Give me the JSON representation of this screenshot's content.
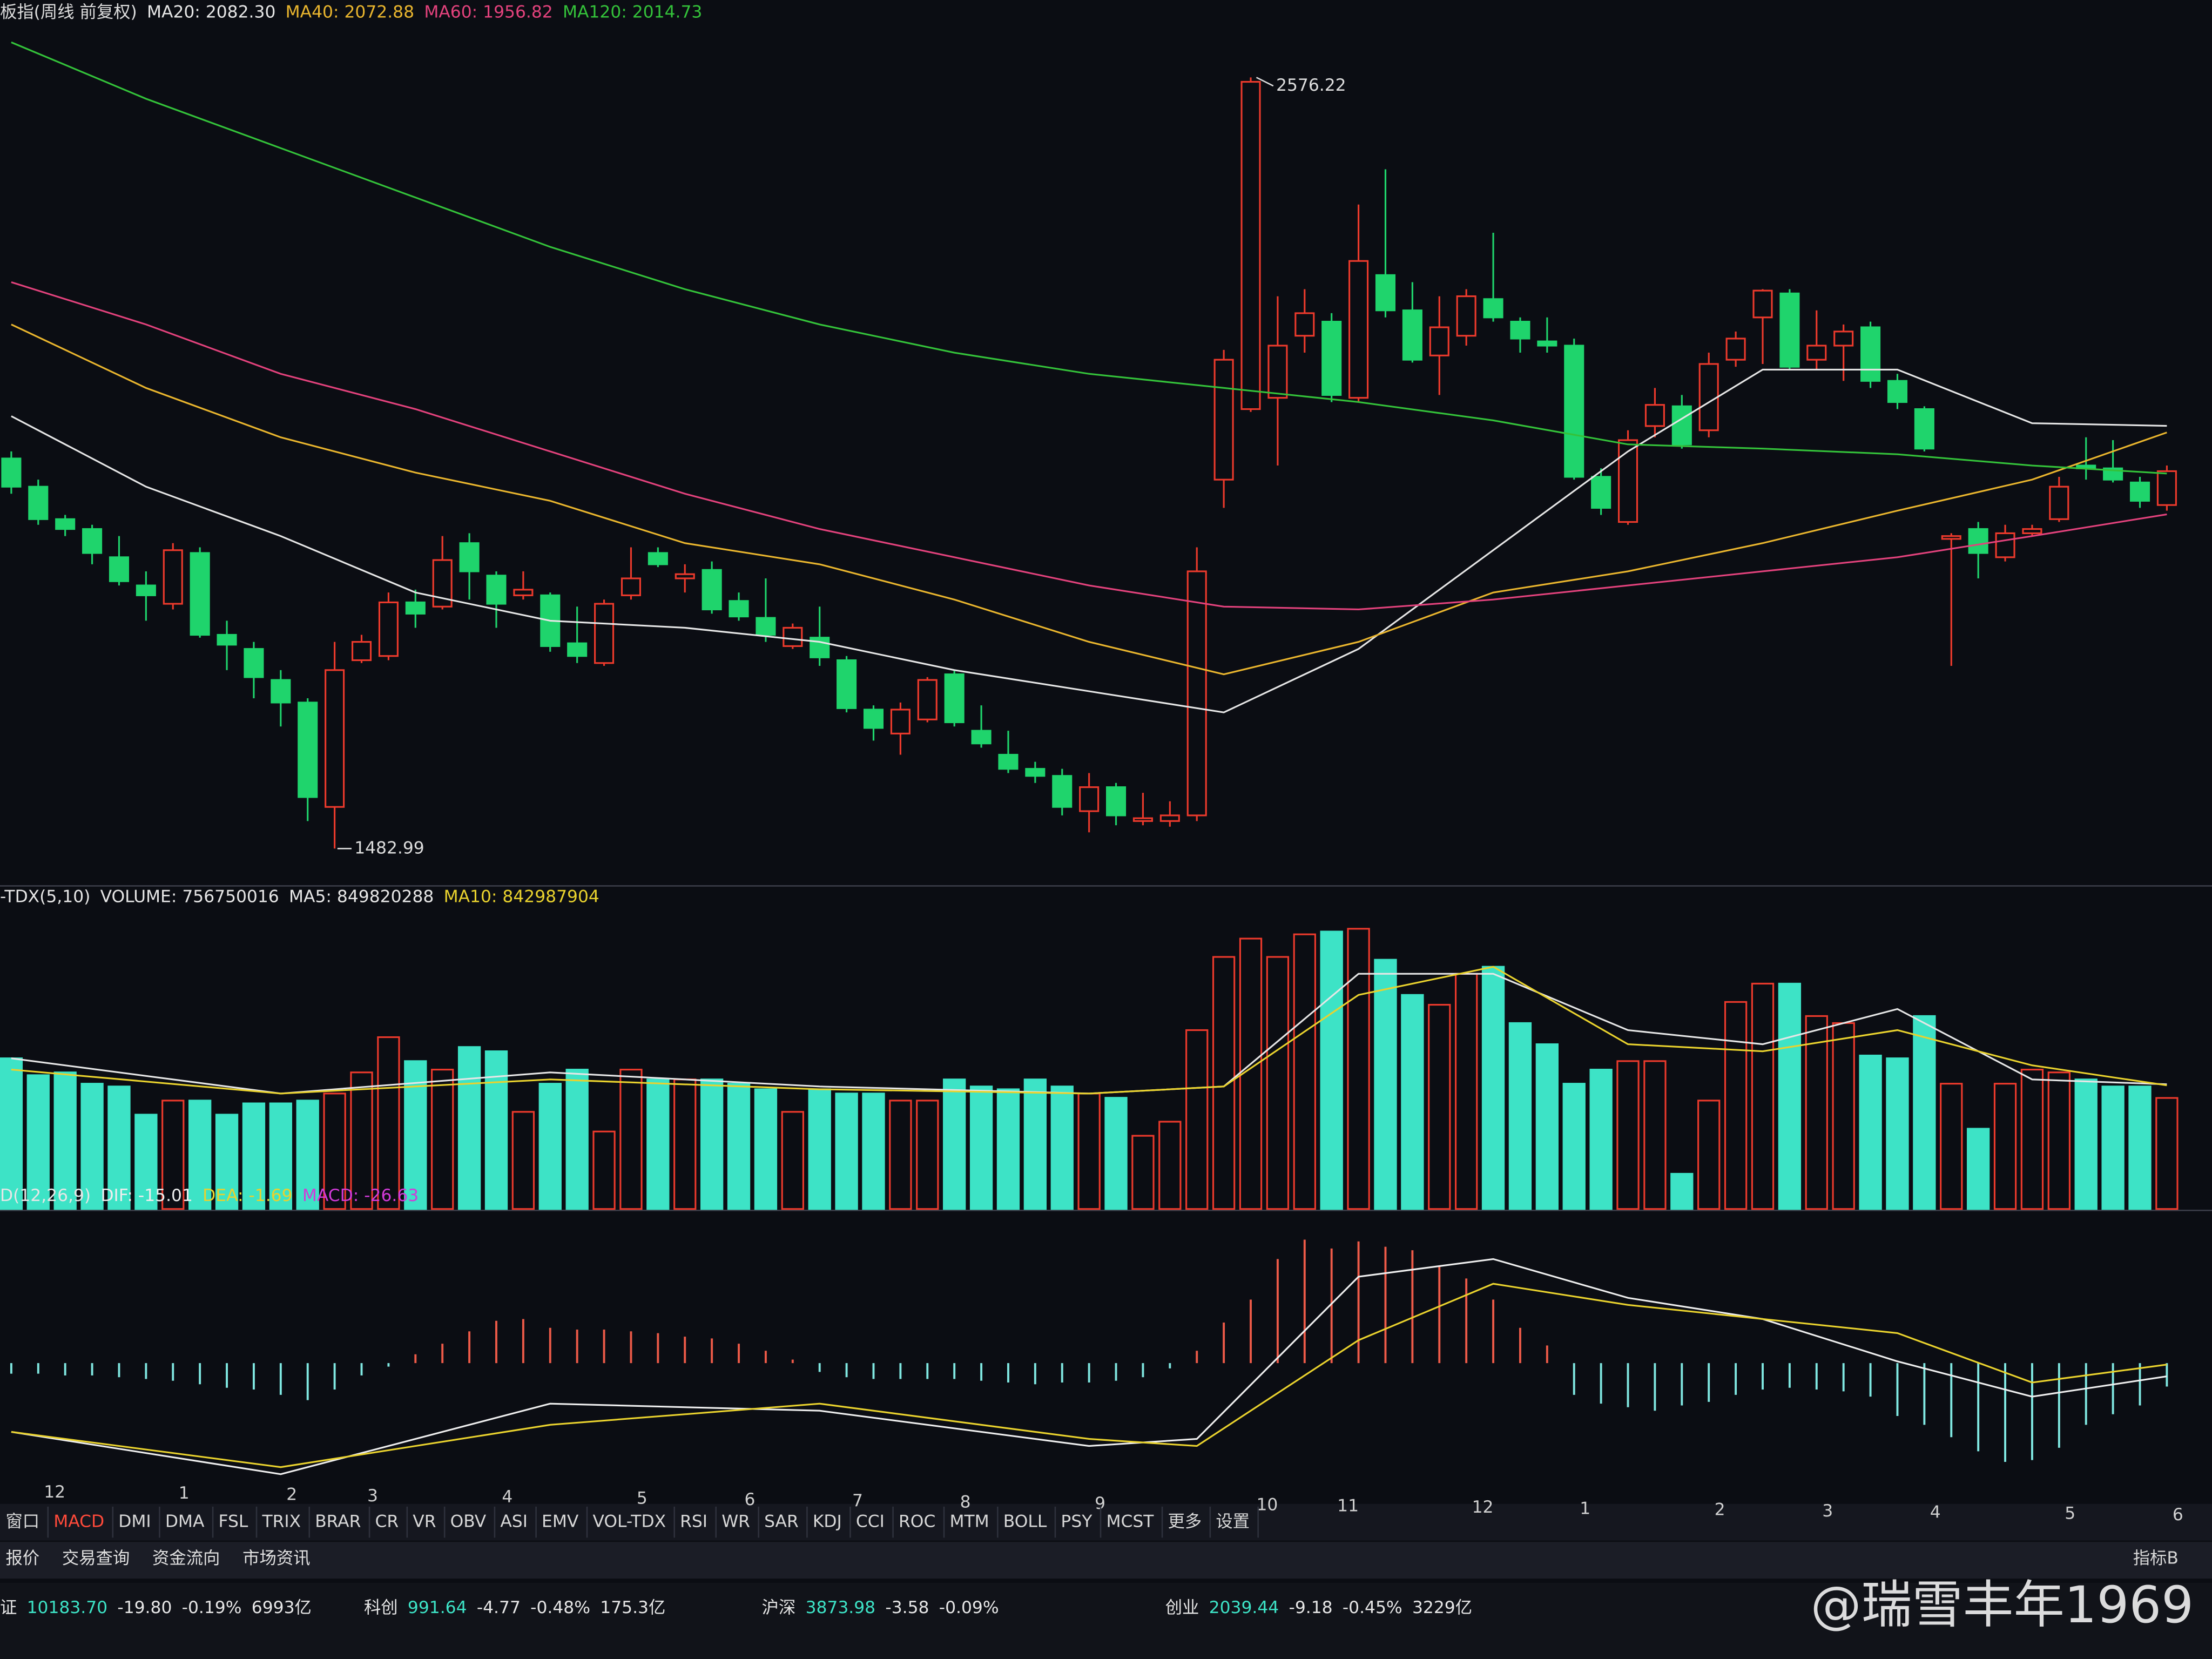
{
  "chart_data": [
    {
      "type": "candlestick",
      "title": "板指(周线 前复权)",
      "up_color": "#ec3a2c",
      "down_color": "#1fd46c",
      "ylim": [
        1436,
        2686
      ],
      "open": [
        2036,
        1996,
        1950,
        1936,
        1896,
        1856,
        1830,
        1902,
        1786,
        1766,
        1722,
        1690,
        1542,
        1750,
        1756,
        1832,
        1826,
        1916,
        1870,
        1842,
        1842,
        1774,
        1746,
        1842,
        1902,
        1866,
        1878,
        1834,
        1810,
        1770,
        1782,
        1750,
        1680,
        1646,
        1666,
        1730,
        1650,
        1616,
        1596,
        1586,
        1536,
        1570,
        1522,
        1522,
        1530,
        2006,
        2106,
        2122,
        2210,
        2230,
        2122,
        2296,
        2246,
        2182,
        2210,
        2262,
        2230,
        2202,
        2196,
        2010,
        1946,
        2082,
        2110,
        2076,
        2176,
        2236,
        2270,
        2176,
        2196,
        2222,
        2146,
        2106,
        1922,
        1936,
        1896,
        1930,
        1950,
        2026,
        2022,
        2002,
        1970
      ],
      "high": [
        2046,
        2006,
        1956,
        1942,
        1926,
        1876,
        1916,
        1910,
        1806,
        1776,
        1736,
        1696,
        1776,
        1786,
        1846,
        1850,
        1926,
        1930,
        1876,
        1876,
        1846,
        1826,
        1836,
        1910,
        1910,
        1886,
        1890,
        1846,
        1866,
        1802,
        1826,
        1756,
        1686,
        1690,
        1726,
        1736,
        1686,
        1650,
        1606,
        1596,
        1590,
        1576,
        1562,
        1550,
        1910,
        2190,
        2576.22,
        2266,
        2276,
        2242,
        2396,
        2446,
        2286,
        2266,
        2276,
        2356,
        2236,
        2236,
        2206,
        2022,
        2076,
        2136,
        2126,
        2186,
        2216,
        2276,
        2276,
        2246,
        2226,
        2230,
        2156,
        2110,
        1930,
        1946,
        1942,
        1942,
        2010,
        2066,
        2062,
        2010,
        2026
      ],
      "low": [
        1986,
        1942,
        1926,
        1886,
        1856,
        1806,
        1822,
        1782,
        1736,
        1696,
        1656,
        1522,
        1482.99,
        1746,
        1750,
        1796,
        1822,
        1836,
        1796,
        1836,
        1762,
        1746,
        1742,
        1836,
        1882,
        1846,
        1816,
        1806,
        1776,
        1766,
        1742,
        1676,
        1636,
        1616,
        1662,
        1656,
        1626,
        1590,
        1576,
        1530,
        1506,
        1516,
        1516,
        1514,
        1522,
        1966,
        2102,
        2026,
        2186,
        2116,
        2116,
        2236,
        2172,
        2126,
        2196,
        2230,
        2186,
        2186,
        2006,
        1956,
        1942,
        2066,
        2050,
        2066,
        2166,
        2170,
        2162,
        2162,
        2146,
        2136,
        2106,
        2046,
        1742,
        1866,
        1890,
        1926,
        1946,
        2006,
        2002,
        1966,
        1962
      ],
      "close": [
        1996,
        1950,
        1936,
        1902,
        1862,
        1842,
        1906,
        1786,
        1772,
        1726,
        1690,
        1556,
        1736,
        1776,
        1832,
        1816,
        1892,
        1876,
        1830,
        1850,
        1770,
        1756,
        1830,
        1866,
        1886,
        1872,
        1822,
        1812,
        1786,
        1796,
        1754,
        1682,
        1654,
        1680,
        1722,
        1662,
        1632,
        1596,
        1586,
        1542,
        1570,
        1530,
        1526,
        1530,
        1876,
        2176,
        2570,
        2196,
        2242,
        2126,
        2316,
        2246,
        2176,
        2222,
        2266,
        2236,
        2206,
        2196,
        2010,
        1966,
        2062,
        2112,
        2056,
        2170,
        2206,
        2274,
        2166,
        2196,
        2216,
        2146,
        2116,
        2050,
        1926,
        1902,
        1930,
        1936,
        1996,
        2022,
        2006,
        1976,
        2018
      ],
      "lines": [
        {
          "name": "MA20",
          "legend_label": "MA20: 2082.30",
          "color": "#e6e6e6",
          "x": [
            0,
            5,
            10,
            15,
            20,
            25,
            30,
            35,
            40,
            45,
            50,
            55,
            60,
            65,
            70,
            75,
            80
          ],
          "values": [
            2096,
            1996,
            1926,
            1846,
            1806,
            1796,
            1776,
            1736,
            1706,
            1676,
            1766,
            1906,
            2046,
            2162,
            2162,
            2086,
            2082.3
          ]
        },
        {
          "name": "MA40",
          "legend_label": "MA40: 2072.88",
          "color": "#e9b52e",
          "x": [
            0,
            5,
            10,
            15,
            20,
            25,
            30,
            35,
            40,
            45,
            50,
            55,
            60,
            65,
            70,
            75,
            80
          ],
          "values": [
            2226,
            2136,
            2066,
            2016,
            1976,
            1916,
            1886,
            1836,
            1776,
            1730,
            1776,
            1846,
            1876,
            1916,
            1962,
            2006,
            2072.88
          ]
        },
        {
          "name": "MA60",
          "legend_label": "MA60: 1956.82",
          "color": "#e2427c",
          "x": [
            0,
            5,
            10,
            15,
            20,
            25,
            30,
            35,
            40,
            45,
            50,
            55,
            60,
            65,
            70,
            75,
            80
          ],
          "values": [
            2286,
            2226,
            2156,
            2106,
            2046,
            1986,
            1936,
            1896,
            1856,
            1826,
            1822,
            1836,
            1856,
            1876,
            1896,
            1926,
            1956.82
          ]
        },
        {
          "name": "MA120",
          "legend_label": "MA120: 2014.73",
          "color": "#34c23a",
          "x": [
            0,
            5,
            10,
            15,
            20,
            25,
            30,
            35,
            40,
            45,
            50,
            55,
            60,
            65,
            70,
            75,
            80
          ],
          "values": [
            2626,
            2546,
            2476,
            2406,
            2336,
            2276,
            2226,
            2186,
            2156,
            2136,
            2116,
            2090,
            2056,
            2050,
            2042,
            2026,
            2014.73
          ]
        }
      ]
    },
    {
      "type": "bar",
      "title": "-TDX(5,10)",
      "legend_label": "VOLUME: 756750016",
      "color": "#3de3c6",
      "up_color": "#ec3a2c",
      "ylim": [
        0,
        2000000000
      ],
      "values": [
        1027000000,
        912000000,
        931000000,
        854000000,
        835000000,
        643000000,
        739000000,
        739000000,
        643000000,
        720000000,
        720000000,
        739000000,
        787000000,
        931000000,
        1171000000,
        1008000000,
        950000000,
        1104000000,
        1075000000,
        662000000,
        854000000,
        950000000,
        528000000,
        950000000,
        883000000,
        883000000,
        883000000,
        854000000,
        816000000,
        662000000,
        816000000,
        787000000,
        787000000,
        739000000,
        739000000,
        883000000,
        835000000,
        816000000,
        883000000,
        835000000,
        787000000,
        758000000,
        499000000,
        595000000,
        1219000000,
        1718000000,
        1843000000,
        1718000000,
        1872000000,
        1891000000,
        1910000000,
        1699000000,
        1459000000,
        1392000000,
        1603000000,
        1651000000,
        1267000000,
        1123000000,
        854000000,
        950000000,
        1008000000,
        1008000000,
        240000000,
        739000000,
        1411000000,
        1536000000,
        1536000000,
        1315000000,
        1267000000,
        1046000000,
        1027000000,
        1315000000,
        854000000,
        547000000,
        854000000,
        950000000,
        931000000,
        883000000,
        835000000,
        835000000,
        756750016
      ],
      "lines": [
        {
          "name": "MA5",
          "legend_label": "MA5: 849820288",
          "color": "#e6e6e6",
          "x": [
            0,
            10,
            20,
            30,
            40,
            45,
            50,
            55,
            60,
            65,
            70,
            75,
            80
          ],
          "values": [
            1027000000,
            787000000,
            931000000,
            835000000,
            787000000,
            835000000,
            1603000000,
            1603000000,
            1219000000,
            1123000000,
            1363000000,
            883000000,
            849820288
          ]
        },
        {
          "name": "MA10",
          "legend_label": "MA10: 842987904",
          "color": "#e9d22e",
          "x": [
            0,
            10,
            20,
            30,
            40,
            45,
            50,
            55,
            60,
            65,
            70,
            75,
            80
          ],
          "values": [
            950000000,
            787000000,
            883000000,
            816000000,
            787000000,
            835000000,
            1459000000,
            1651000000,
            1123000000,
            1075000000,
            1219000000,
            979000000,
            842987904
          ]
        }
      ]
    },
    {
      "type": "macd",
      "title": "D(12,26,9)",
      "legend_label": "MACD: -26.63",
      "legend_color": "#d23ad8",
      "up_color": "#ec5a48",
      "down_color": "#7fe6e0",
      "ylim": [
        -150,
        170
      ],
      "values": [
        -12,
        -12,
        -14,
        -14,
        -16,
        -18,
        -20,
        -24,
        -28,
        -30,
        -36,
        -42,
        -30,
        -14,
        -4,
        10,
        22,
        36,
        48,
        50,
        40,
        38,
        38,
        36,
        34,
        30,
        28,
        22,
        14,
        4,
        -10,
        -16,
        -18,
        -18,
        -18,
        -18,
        -20,
        -22,
        -24,
        -22,
        -22,
        -20,
        -16,
        -6,
        14,
        46,
        72,
        118,
        140,
        130,
        138,
        132,
        128,
        110,
        96,
        72,
        40,
        20,
        -36,
        -46,
        -50,
        -54,
        -48,
        -44,
        -36,
        -30,
        -28,
        -30,
        -32,
        -38,
        -60,
        -70,
        -84,
        -100,
        -112,
        -110,
        -96,
        -70,
        -58,
        -48,
        -26.63
      ],
      "lines": [
        {
          "name": "DIF",
          "legend_label": "DIF: -15.01",
          "color": "#eeeeee",
          "x": [
            0,
            10,
            20,
            30,
            40,
            44,
            50,
            55,
            60,
            65,
            70,
            75,
            80
          ],
          "values": [
            -78,
            -126,
            -46,
            -54,
            -94,
            -86,
            98,
            118,
            74,
            50,
            2,
            -38,
            -15.01
          ]
        },
        {
          "name": "DEA",
          "legend_label": "DEA: -1.69",
          "color": "#e9d22e",
          "x": [
            0,
            10,
            20,
            30,
            40,
            44,
            50,
            55,
            60,
            65,
            70,
            75,
            80
          ],
          "values": [
            -78,
            -118,
            -70,
            -46,
            -86,
            -94,
            26,
            90,
            66,
            50,
            34,
            -22,
            -1.69
          ]
        }
      ],
      "xticks": [
        {
          "value": 1,
          "label": "12"
        },
        {
          "value": 6,
          "label": "1"
        },
        {
          "value": 10,
          "label": "2"
        },
        {
          "value": 13,
          "label": "3"
        },
        {
          "value": 18,
          "label": "4"
        },
        {
          "value": 23,
          "label": "5"
        },
        {
          "value": 27,
          "label": "6"
        },
        {
          "value": 31,
          "label": "7"
        },
        {
          "value": 35,
          "label": "8"
        },
        {
          "value": 40,
          "label": "9"
        },
        {
          "value": 46,
          "label": "10"
        },
        {
          "value": 49,
          "label": "11"
        },
        {
          "value": 54,
          "label": "12"
        },
        {
          "value": 58,
          "label": "1"
        },
        {
          "value": 63,
          "label": "2"
        },
        {
          "value": 67,
          "label": "3"
        },
        {
          "value": 71,
          "label": "4"
        },
        {
          "value": 76,
          "label": "5"
        },
        {
          "value": 80,
          "label": "6"
        }
      ]
    }
  ],
  "tabs": [
    "窗口",
    "MACD",
    "DMI",
    "DMA",
    "FSL",
    "TRIX",
    "BRAR",
    "CR",
    "VR",
    "OBV",
    "ASI",
    "EMV",
    "VOL-TDX",
    "RSI",
    "WR",
    "SAR",
    "KDJ",
    "CCI",
    "ROC",
    "MTM",
    "BOLL",
    "PSY",
    "MCST",
    "更多",
    "设置"
  ],
  "tab_right": "指标B",
  "subtabs": [
    "报价",
    "交易查询",
    "资金流向",
    "市场资讯"
  ],
  "status": [
    {
      "name": "证",
      "value": "10183.70",
      "change": "-19.80",
      "pct": "-0.19%",
      "amount": "6993亿"
    },
    {
      "name": "科创",
      "value": "991.64",
      "change": "-4.77",
      "pct": "-0.48%",
      "amount": "175.3亿"
    },
    {
      "name": "沪深",
      "value": "3873.98",
      "change": "-3.58",
      "pct": "-0.09%"
    },
    {
      "name": "创业",
      "value": "2039.44",
      "change": "-9.18",
      "pct": "-0.45%",
      "amount": "3229亿"
    }
  ],
  "watermark": "@瑞雪丰年1969"
}
